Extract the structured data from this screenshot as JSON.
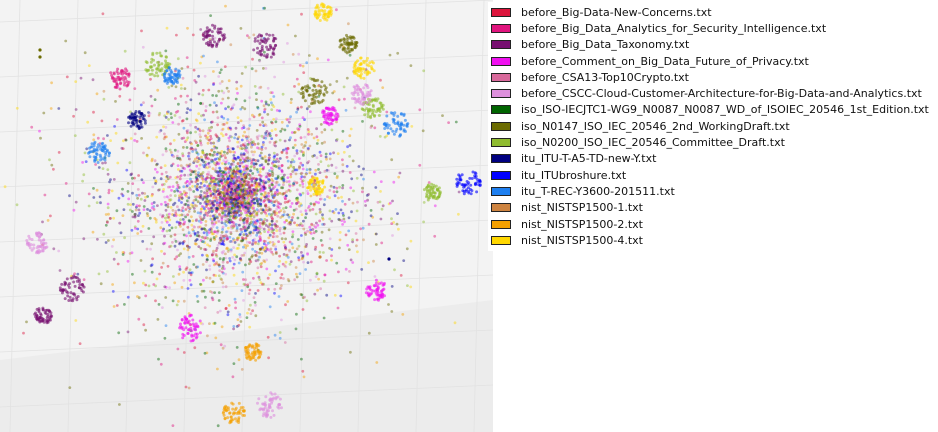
{
  "chart_data": {
    "type": "scatter",
    "projection": "3d",
    "grid": true,
    "legend_position": "right",
    "series": [
      {
        "name": "before_Big-Data-New-Concerns.txt",
        "color": "#dc143c"
      },
      {
        "name": "before_Big_Data_Analytics_for_Security_Intelligence.txt",
        "color": "#e0157e"
      },
      {
        "name": "before_Big_Data_Taxonomy.txt",
        "color": "#770f70"
      },
      {
        "name": "before_Comment_on_Big_Data_Future_of_Privacy.txt",
        "color": "#f010f0"
      },
      {
        "name": "before_CSA13-Top10Crypto.txt",
        "color": "#d8699b"
      },
      {
        "name": "before_CSCC-Cloud-Customer-Architecture-for-Big-Data-and-Analytics.txt",
        "color": "#de90dd"
      },
      {
        "name": "iso_ISO-IECJTC1-WG9_N0087_N0087_WD_of_ISOIEC_20546_1st_Edition.txt",
        "color": "#006400"
      },
      {
        "name": "iso_N0147_ISO_IEC_20546_2nd_WorkingDraft.txt",
        "color": "#6b6b00"
      },
      {
        "name": "iso_N0200_ISO_IEC_20546_Committee_Draft.txt",
        "color": "#8fbc2f"
      },
      {
        "name": "itu_ITU-T-A5-TD-new-Y.txt",
        "color": "#000080"
      },
      {
        "name": "itu_ITUbroshure.txt",
        "color": "#0000ff"
      },
      {
        "name": "itu_T-REC-Y3600-201511.txt",
        "color": "#1e7ff0"
      },
      {
        "name": "nist_NISTSP1500-1.txt",
        "color": "#cd8340"
      },
      {
        "name": "nist_NISTSP1500-2.txt",
        "color": "#f5a000"
      },
      {
        "name": "nist_NISTSP1500-4.txt",
        "color": "#ffd700"
      }
    ]
  }
}
